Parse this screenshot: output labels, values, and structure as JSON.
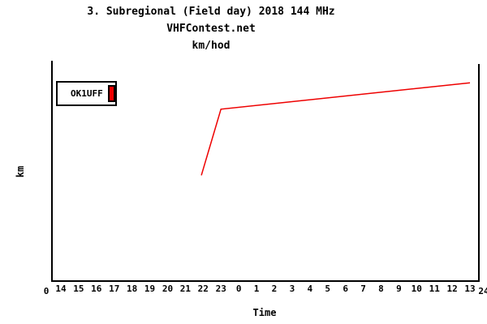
{
  "colors": {
    "background": "#ffffff",
    "axis": "#000000",
    "text": "#000000",
    "series_red": "#ee0000"
  },
  "chart_data": {
    "type": "line",
    "title": "3. Subregional (Field day) 2018 144 MHz",
    "subtitle": "VHFContest.net",
    "value_unit_title": "km/hod",
    "xlabel": "Time",
    "ylabel": "km",
    "x_hours_span": 24,
    "x_tick_labels": [
      "14",
      "15",
      "16",
      "17",
      "18",
      "19",
      "20",
      "21",
      "22",
      "23",
      "0",
      "1",
      "2",
      "3",
      "4",
      "5",
      "6",
      "7",
      "8",
      "9",
      "10",
      "11",
      "12",
      "13"
    ],
    "x_range_start_label": "0",
    "x_range_end_label": "24",
    "y_axis_tick_labels": [],
    "grid": "off",
    "legend_position": "top-left-inside",
    "series": [
      {
        "name": "OK1UFF",
        "color": "#ee0000",
        "y_scale_note": "y-axis has no numeric tick labels; values given as fraction of plot height",
        "points": [
          {
            "hours_from_axis_start": 8.4,
            "approx_time": "22:25",
            "y_frac": 0.48
          },
          {
            "hours_from_axis_start": 9.5,
            "approx_time": "23:30",
            "y_frac": 0.78
          },
          {
            "hours_from_axis_start": 23.5,
            "approx_time": "13:30",
            "y_frac": 0.9
          }
        ]
      }
    ]
  }
}
